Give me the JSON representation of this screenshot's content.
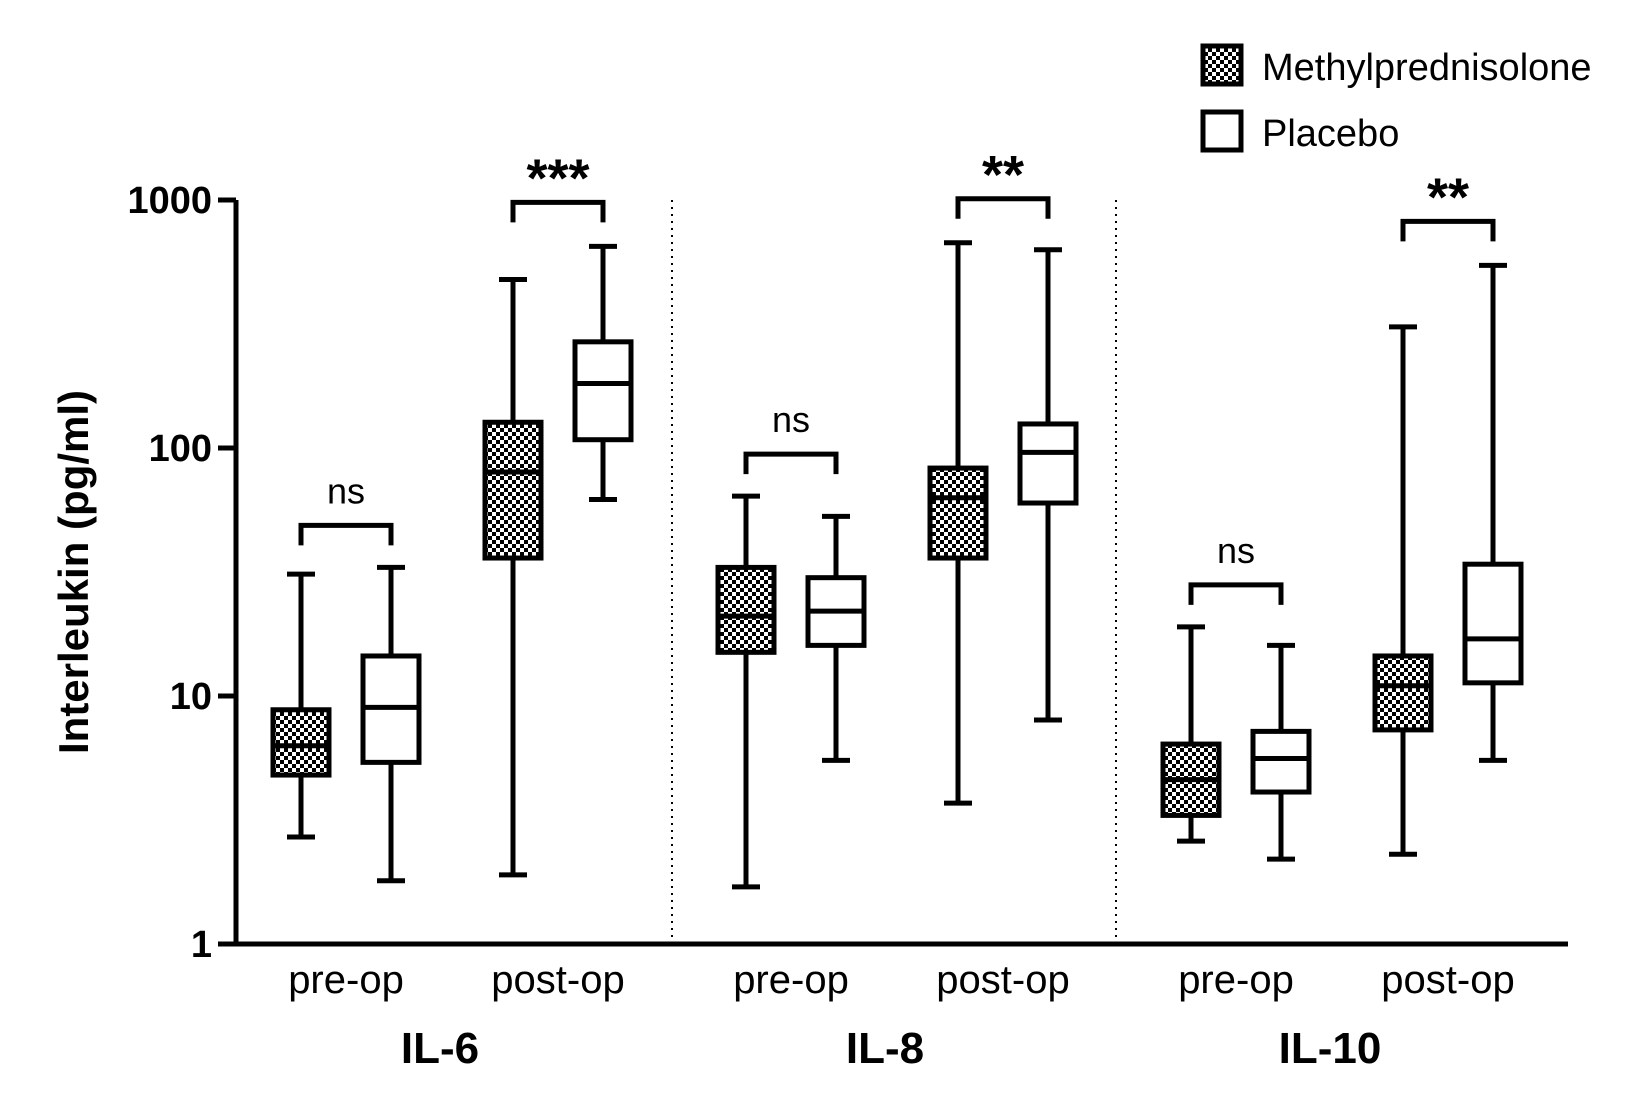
{
  "chart_data": {
    "type": "box",
    "ylabel": "Interleukin (pg/ml)",
    "yscale": "log",
    "ylim": [
      1,
      1000
    ],
    "yticks": [
      "1",
      "10",
      "100",
      "1000"
    ],
    "groups": [
      "IL-6",
      "IL-8",
      "IL-10"
    ],
    "categories": [
      "pre-op",
      "post-op"
    ],
    "legend": {
      "position": "top-right",
      "entries": [
        {
          "name": "Methylprednisolone",
          "pattern": "checkered"
        },
        {
          "name": "Placebo",
          "pattern": "open"
        }
      ]
    },
    "series": [
      {
        "name": "Methylprednisolone",
        "boxes": [
          {
            "group": "IL-6",
            "category": "pre-op",
            "min": 2.7,
            "q1": 4.8,
            "median": 6.3,
            "q3": 8.8,
            "max": 31
          },
          {
            "group": "IL-6",
            "category": "post-op",
            "min": 1.9,
            "q1": 36,
            "median": 80,
            "q3": 127,
            "max": 478
          },
          {
            "group": "IL-8",
            "category": "pre-op",
            "min": 1.7,
            "q1": 15,
            "median": 21,
            "q3": 33,
            "max": 64
          },
          {
            "group": "IL-8",
            "category": "post-op",
            "min": 3.7,
            "q1": 36,
            "median": 63,
            "q3": 83,
            "max": 672
          },
          {
            "group": "IL-10",
            "category": "pre-op",
            "min": 2.6,
            "q1": 3.3,
            "median": 4.6,
            "q3": 6.4,
            "max": 19
          },
          {
            "group": "IL-10",
            "category": "post-op",
            "min": 2.3,
            "q1": 7.3,
            "median": 11,
            "q3": 14.5,
            "max": 308
          }
        ]
      },
      {
        "name": "Placebo",
        "boxes": [
          {
            "group": "IL-6",
            "category": "pre-op",
            "min": 1.8,
            "q1": 5.4,
            "median": 9,
            "q3": 14.5,
            "max": 33
          },
          {
            "group": "IL-6",
            "category": "post-op",
            "min": 62,
            "q1": 108,
            "median": 182,
            "q3": 268,
            "max": 650
          },
          {
            "group": "IL-8",
            "category": "pre-op",
            "min": 5.5,
            "q1": 16,
            "median": 22,
            "q3": 30,
            "max": 53
          },
          {
            "group": "IL-8",
            "category": "post-op",
            "min": 8,
            "q1": 60,
            "median": 96,
            "q3": 125,
            "max": 630
          },
          {
            "group": "IL-10",
            "category": "pre-op",
            "min": 2.2,
            "q1": 4.1,
            "median": 5.6,
            "q3": 7.2,
            "max": 16
          },
          {
            "group": "IL-10",
            "category": "post-op",
            "min": 5.5,
            "q1": 11.3,
            "median": 17,
            "q3": 34,
            "max": 545
          }
        ]
      }
    ],
    "significance": [
      {
        "group": "IL-6",
        "category": "pre-op",
        "label": "ns"
      },
      {
        "group": "IL-6",
        "category": "post-op",
        "label": "***"
      },
      {
        "group": "IL-8",
        "category": "pre-op",
        "label": "ns"
      },
      {
        "group": "IL-8",
        "category": "post-op",
        "label": "**"
      },
      {
        "group": "IL-10",
        "category": "pre-op",
        "label": "ns"
      },
      {
        "group": "IL-10",
        "category": "post-op",
        "label": "**"
      }
    ]
  }
}
